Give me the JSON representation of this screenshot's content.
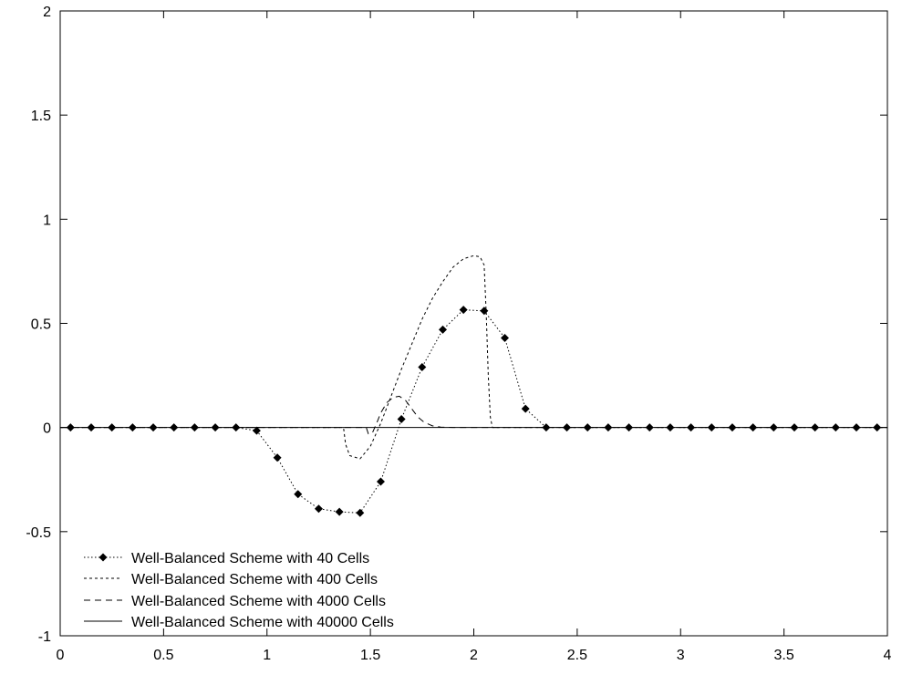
{
  "chart_data": {
    "type": "line",
    "title": "",
    "xlabel": "",
    "ylabel": "",
    "xlim": [
      0,
      4
    ],
    "ylim": [
      -1,
      2
    ],
    "xticks": [
      0,
      0.5,
      1,
      1.5,
      2,
      2.5,
      3,
      3.5,
      4
    ],
    "xtick_labels": [
      "0",
      "0.5",
      "1",
      "1.5",
      "2",
      "2.5",
      "3",
      "3.5",
      "4"
    ],
    "yticks": [
      -1,
      -0.5,
      0,
      0.5,
      1,
      1.5,
      2
    ],
    "ytick_labels": [
      "-1",
      "-0.5",
      "0",
      "0.5",
      "1",
      "1.5",
      "2"
    ],
    "grid": false,
    "legend_position": "bottom-left",
    "series": [
      {
        "name": "Well-Balanced Scheme with 40 Cells",
        "style": "dotted-diamonds",
        "x": [
          0.05,
          0.15,
          0.25,
          0.35,
          0.45,
          0.55,
          0.65,
          0.75,
          0.85,
          0.95,
          1.05,
          1.15,
          1.25,
          1.35,
          1.45,
          1.55,
          1.65,
          1.75,
          1.85,
          1.95,
          2.05,
          2.15,
          2.25,
          2.35,
          2.45,
          2.55,
          2.65,
          2.75,
          2.85,
          2.95,
          3.05,
          3.15,
          3.25,
          3.35,
          3.45,
          3.55,
          3.65,
          3.75,
          3.85,
          3.95
        ],
        "y": [
          0,
          0,
          0,
          0,
          0,
          0,
          0,
          0,
          0,
          -0.015,
          -0.145,
          -0.32,
          -0.39,
          -0.405,
          -0.41,
          -0.26,
          0.04,
          0.29,
          0.47,
          0.565,
          0.56,
          0.43,
          0.09,
          0,
          0,
          0,
          0,
          0,
          0,
          0,
          0,
          0,
          0,
          0,
          0,
          0,
          0,
          0,
          0,
          0
        ]
      },
      {
        "name": "Well-Balanced Scheme with 400 Cells",
        "style": "fine-dashed",
        "x": [
          0.0,
          1.37,
          1.38,
          1.4,
          1.45,
          1.5,
          1.55,
          1.6,
          1.65,
          1.7,
          1.75,
          1.8,
          1.85,
          1.9,
          1.95,
          2.0,
          2.03,
          2.05,
          2.06,
          2.07,
          2.08,
          2.09,
          4.0
        ],
        "y": [
          0,
          0,
          -0.08,
          -0.135,
          -0.15,
          -0.09,
          0.02,
          0.15,
          0.28,
          0.4,
          0.52,
          0.62,
          0.7,
          0.77,
          0.81,
          0.825,
          0.82,
          0.78,
          0.55,
          0.25,
          0.05,
          0,
          0
        ]
      },
      {
        "name": "Well-Balanced Scheme with 4000 Cells",
        "style": "dashed",
        "x": [
          0.0,
          1.48,
          1.49,
          1.51,
          1.53,
          1.55,
          1.58,
          1.61,
          1.64,
          1.67,
          1.7,
          1.73,
          1.76,
          1.8,
          1.84,
          1.9,
          4.0
        ],
        "y": [
          0,
          0,
          -0.03,
          -0.025,
          0.02,
          0.07,
          0.12,
          0.145,
          0.15,
          0.13,
          0.09,
          0.05,
          0.025,
          0.008,
          0.002,
          0,
          0
        ]
      },
      {
        "name": "Well-Balanced Scheme with 40000 Cells",
        "style": "solid",
        "x": [
          0,
          4
        ],
        "y": [
          0,
          0
        ]
      }
    ]
  }
}
